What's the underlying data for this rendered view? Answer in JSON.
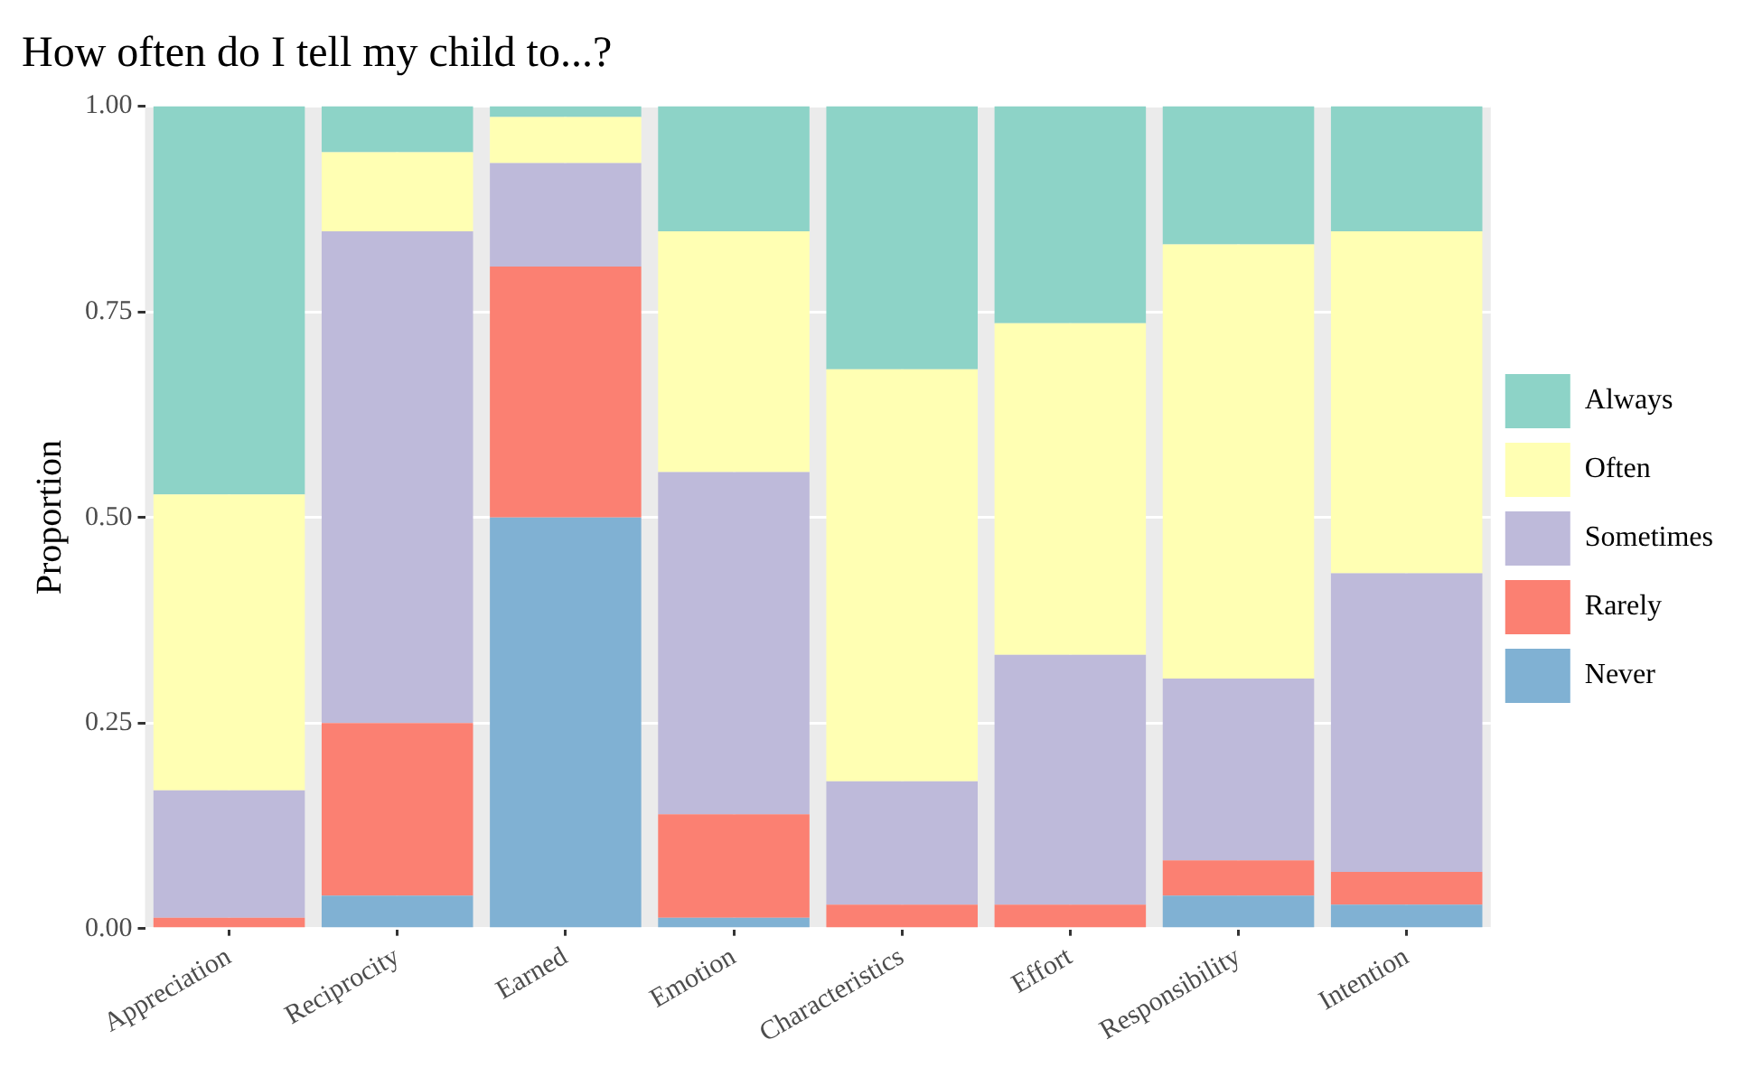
{
  "chart_data": {
    "type": "bar",
    "title": "How often do I tell my child to...?",
    "ylabel": "Proportion",
    "categories": [
      "Appreciation",
      "Reciprocity",
      "Earned",
      "Emotion",
      "Characteristics",
      "Effort",
      "Responsibility",
      "Intention"
    ],
    "stacked": true,
    "series": [
      {
        "name": "Never",
        "color": "#80b1d3",
        "values": [
          0,
          0.04,
          0.5,
          0.013,
          0,
          0,
          0.04,
          0.029
        ]
      },
      {
        "name": "Rarely",
        "color": "#fb8072",
        "values": [
          0.013,
          0.21,
          0.305,
          0.126,
          0.029,
          0.029,
          0.043,
          0.04
        ]
      },
      {
        "name": "Sometimes",
        "color": "#bebada",
        "values": [
          0.155,
          0.598,
          0.126,
          0.416,
          0.15,
          0.304,
          0.221,
          0.363
        ]
      },
      {
        "name": "Often",
        "color": "#ffffb3",
        "values": [
          0.36,
          0.096,
          0.056,
          0.293,
          0.501,
          0.403,
          0.528,
          0.416
        ]
      },
      {
        "name": "Always",
        "color": "#8dd3c7",
        "values": [
          0.472,
          0.056,
          0.013,
          0.152,
          0.32,
          0.264,
          0.168,
          0.152
        ]
      }
    ],
    "ylim": [
      0,
      1
    ],
    "yticks": [
      {
        "value": 0,
        "label": "0.00"
      },
      {
        "value": 0.25,
        "label": "0.25"
      },
      {
        "value": 0.5,
        "label": "0.50"
      },
      {
        "value": 0.75,
        "label": "0.75"
      },
      {
        "value": 1,
        "label": "1.00"
      }
    ],
    "grid": true,
    "legend": "right"
  }
}
